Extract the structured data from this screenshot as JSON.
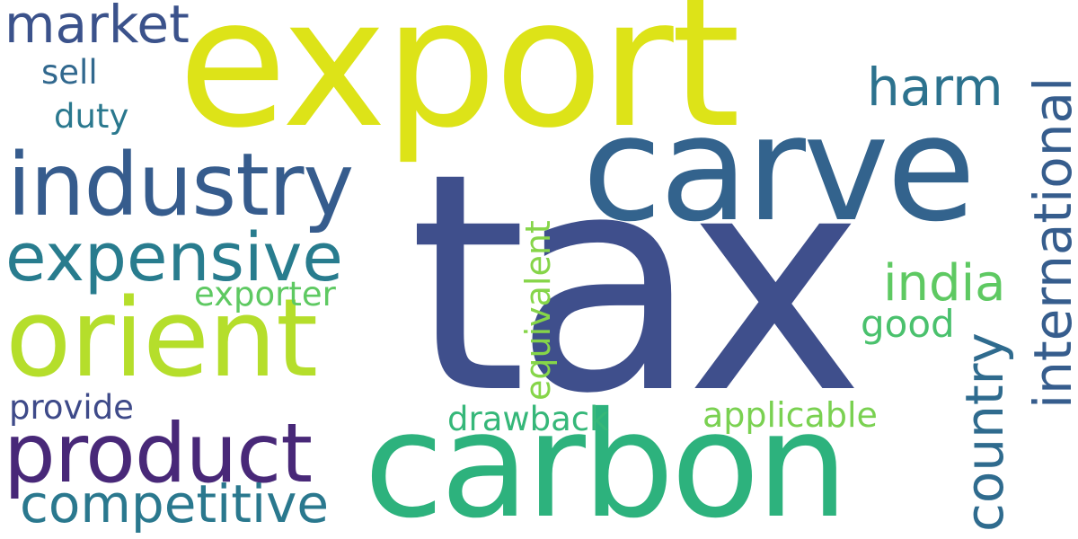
{
  "words": [
    {
      "id": "tax",
      "text": "tax",
      "color": "#3f4f8c"
    },
    {
      "id": "export",
      "text": "export",
      "color": "#dde318"
    },
    {
      "id": "carve",
      "text": "carve",
      "color": "#33638d"
    },
    {
      "id": "carbon",
      "text": "carbon",
      "color": "#2db27d"
    },
    {
      "id": "industry",
      "text": "industry",
      "color": "#365c8d"
    },
    {
      "id": "orient",
      "text": "orient",
      "color": "#b5de2b"
    },
    {
      "id": "product",
      "text": "product",
      "color": "#482878"
    },
    {
      "id": "expensive",
      "text": "expensive",
      "color": "#287c8e"
    },
    {
      "id": "competitive",
      "text": "competitive",
      "color": "#2a788e"
    },
    {
      "id": "market",
      "text": "market",
      "color": "#3b528b"
    },
    {
      "id": "harm",
      "text": "harm",
      "color": "#2c728e"
    },
    {
      "id": "international",
      "text": "international",
      "color": "#365d8d"
    },
    {
      "id": "country",
      "text": "country",
      "color": "#2f6b8e"
    },
    {
      "id": "india",
      "text": "india",
      "color": "#5ec962"
    },
    {
      "id": "good",
      "text": "good",
      "color": "#4ac16d"
    },
    {
      "id": "applicable",
      "text": "applicable",
      "color": "#7ad151"
    },
    {
      "id": "drawback",
      "text": "drawback",
      "color": "#35b779"
    },
    {
      "id": "equivalent",
      "text": "equivalent",
      "color": "#86d549"
    },
    {
      "id": "exporter",
      "text": "exporter",
      "color": "#5ec962"
    },
    {
      "id": "provide",
      "text": "provide",
      "color": "#3e4a89"
    },
    {
      "id": "sell",
      "text": "sell",
      "color": "#31688e"
    },
    {
      "id": "duty",
      "text": "duty",
      "color": "#2a788e"
    }
  ]
}
